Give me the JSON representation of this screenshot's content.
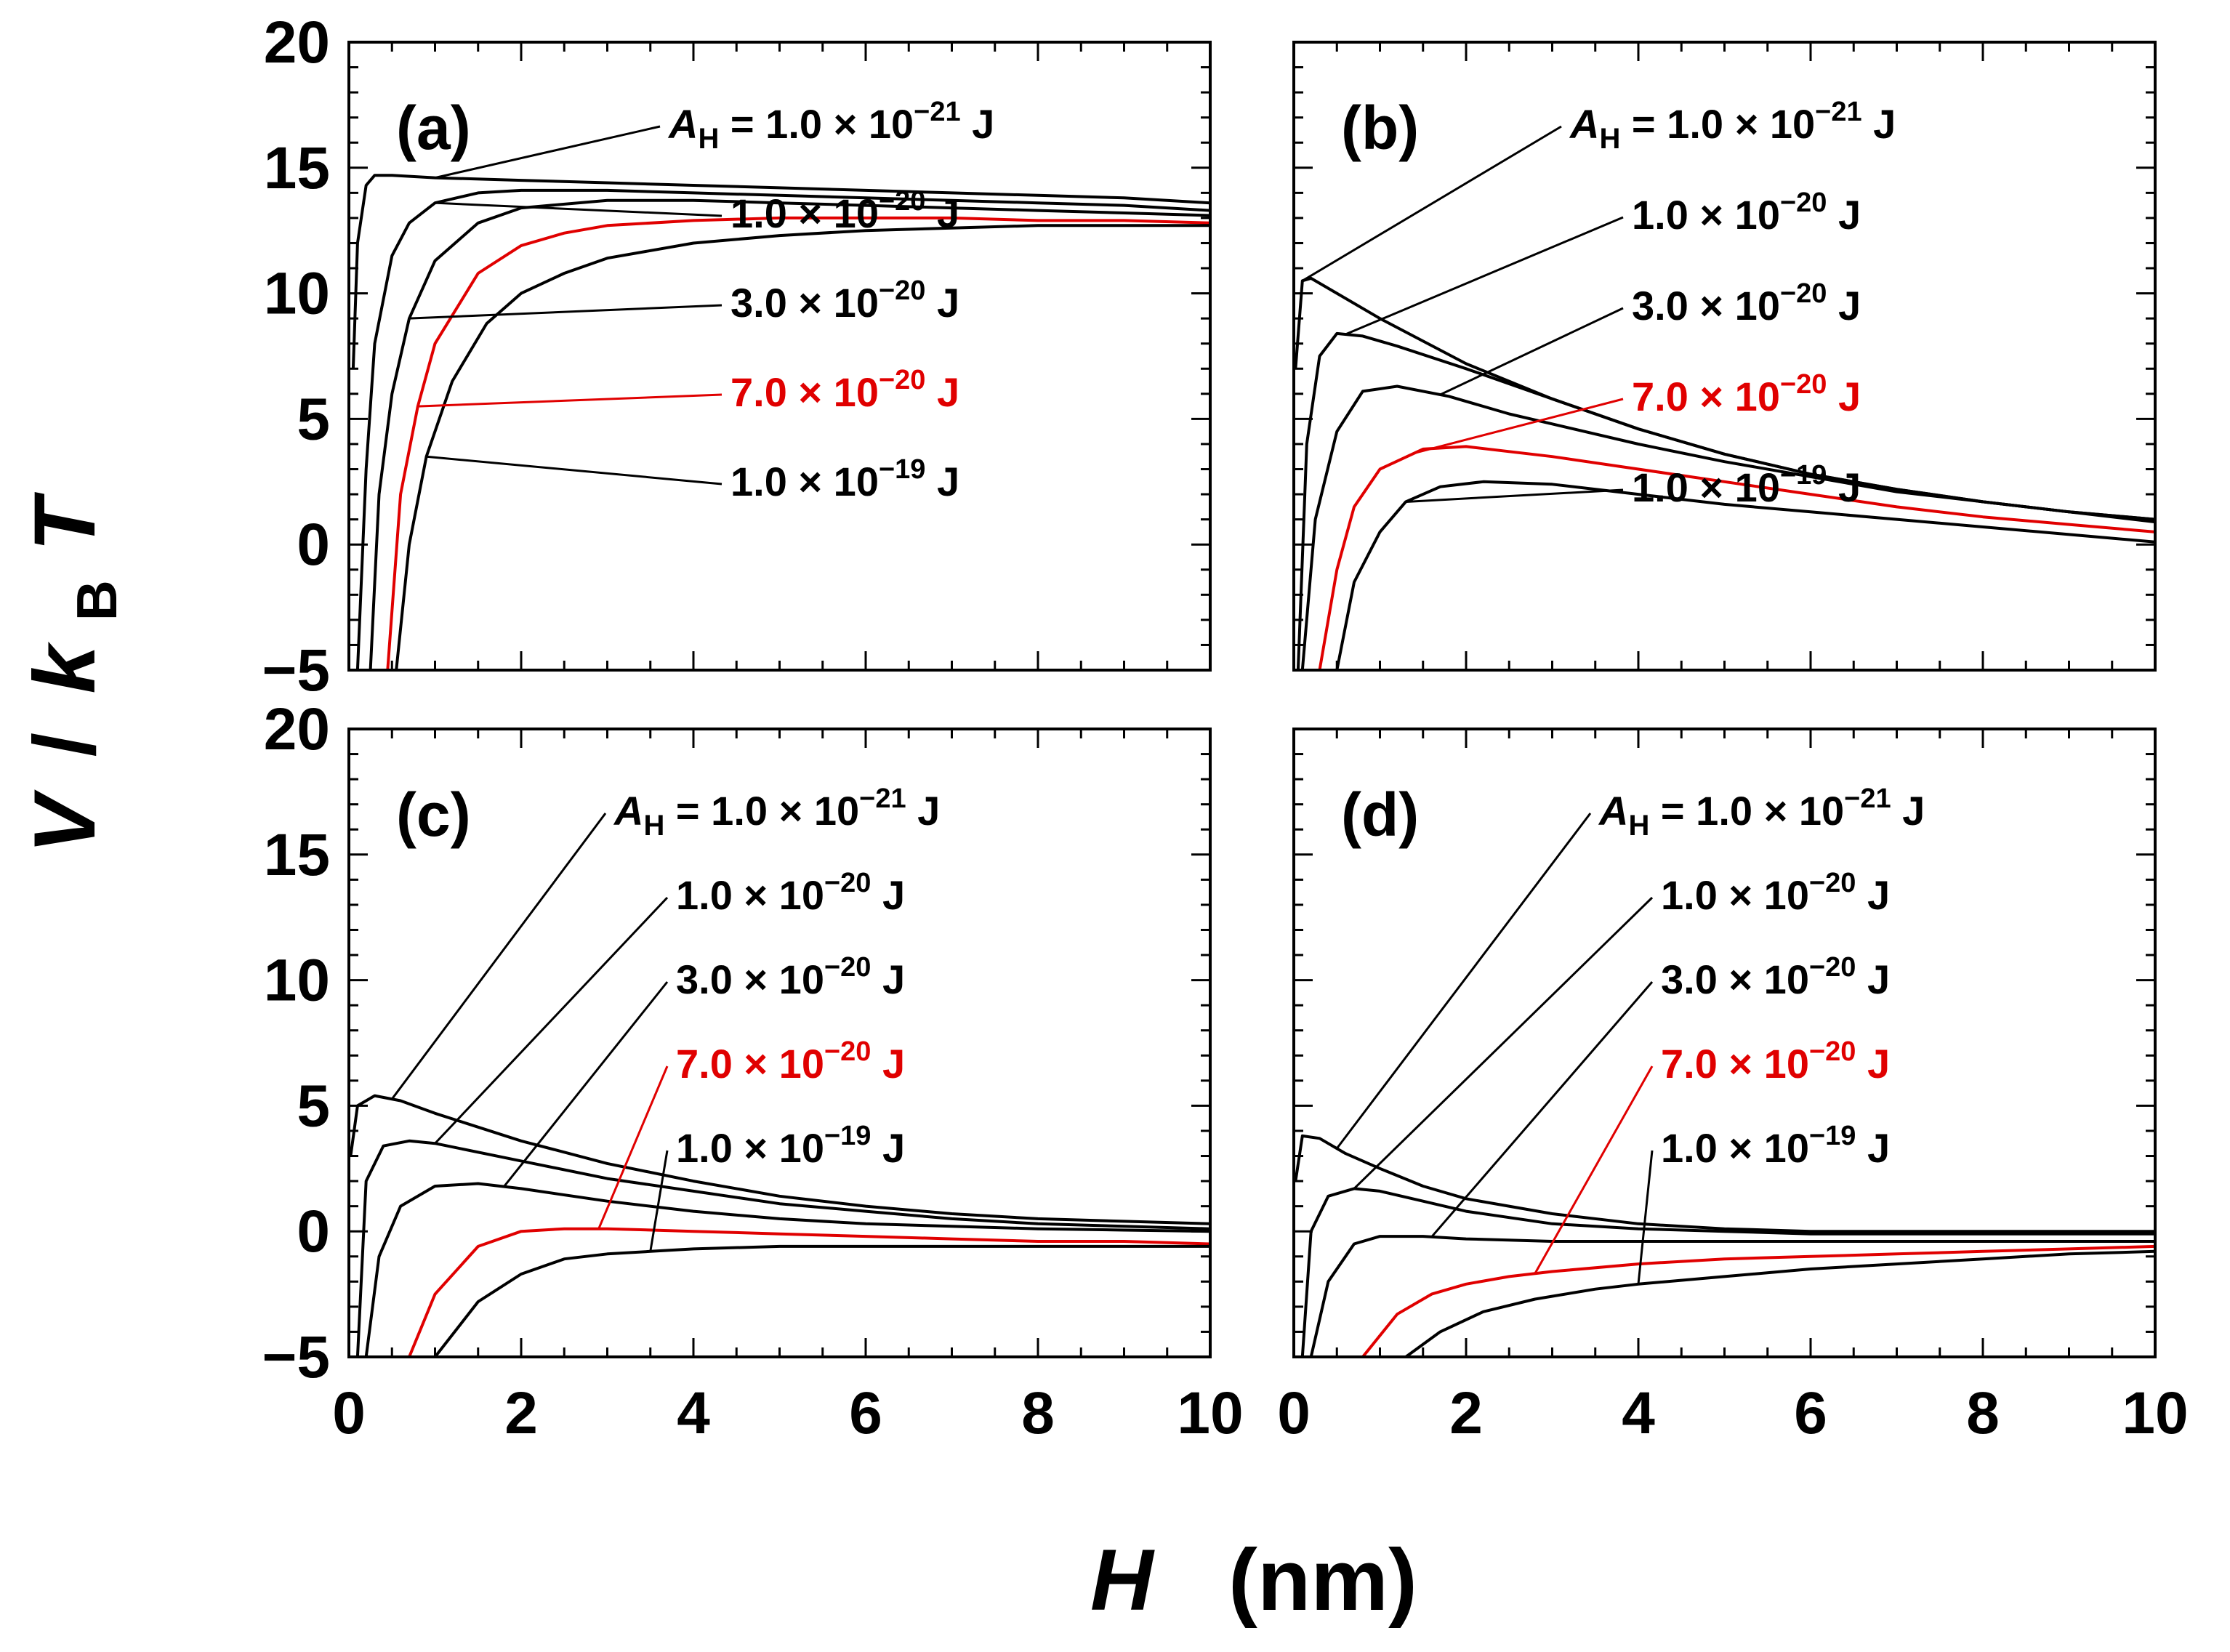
{
  "chart_data": [
    {
      "panel": "(a)",
      "type": "line",
      "xlim": [
        0,
        10
      ],
      "ylim": [
        -5,
        20
      ],
      "xticks": [
        "0",
        "2",
        "4",
        "6",
        "8",
        "10"
      ],
      "yticks": [
        "−5",
        "0",
        "5",
        "10",
        "15",
        "20"
      ],
      "series": [
        {
          "name": "A_H = 1.0 × 10^−21 J",
          "color": "#000000",
          "x": [
            0.05,
            0.1,
            0.2,
            0.3,
            0.5,
            1,
            2,
            3,
            4,
            5,
            6,
            7,
            8,
            9,
            10
          ],
          "values": [
            7,
            12,
            14.3,
            14.7,
            14.7,
            14.6,
            14.5,
            14.4,
            14.3,
            14.2,
            14.1,
            14.0,
            13.9,
            13.8,
            13.6
          ]
        },
        {
          "name": "1.0 × 10^−20 J",
          "color": "#000000",
          "x": [
            0.1,
            0.2,
            0.3,
            0.5,
            0.7,
            1,
            1.5,
            2,
            3,
            4,
            5,
            6,
            7,
            8,
            9,
            10
          ],
          "values": [
            -5,
            3,
            8,
            11.5,
            12.8,
            13.6,
            14.0,
            14.1,
            14.1,
            14.0,
            13.9,
            13.8,
            13.7,
            13.6,
            13.5,
            13.3
          ]
        },
        {
          "name": "3.0 × 10^−20 J",
          "color": "#000000",
          "x": [
            0.25,
            0.35,
            0.5,
            0.7,
            1,
            1.5,
            2,
            3,
            4,
            5,
            6,
            7,
            8,
            9,
            10
          ],
          "values": [
            -5,
            2,
            6,
            9,
            11.3,
            12.8,
            13.4,
            13.7,
            13.7,
            13.6,
            13.5,
            13.4,
            13.3,
            13.2,
            13.1
          ]
        },
        {
          "name": "7.0 × 10^−20 J",
          "color": "#e00000",
          "x": [
            0.45,
            0.6,
            0.8,
            1,
            1.5,
            2,
            2.5,
            3,
            4,
            5,
            6,
            7,
            8,
            9,
            10
          ],
          "values": [
            -5,
            2,
            5.5,
            8,
            10.8,
            11.9,
            12.4,
            12.7,
            12.9,
            13.0,
            13.0,
            13.0,
            12.9,
            12.9,
            12.8
          ]
        },
        {
          "name": "1.0 × 10^−19 J",
          "color": "#000000",
          "x": [
            0.55,
            0.7,
            0.9,
            1.2,
            1.6,
            2,
            2.5,
            3,
            4,
            5,
            6,
            7,
            8,
            9,
            10
          ],
          "values": [
            -5,
            0,
            3.5,
            6.5,
            8.8,
            10,
            10.8,
            11.4,
            12,
            12.3,
            12.5,
            12.6,
            12.7,
            12.7,
            12.7
          ]
        }
      ]
    },
    {
      "panel": "(b)",
      "type": "line",
      "xlim": [
        0,
        10
      ],
      "ylim": [
        -5,
        20
      ],
      "xticks": [
        "0",
        "2",
        "4",
        "6",
        "8",
        "10"
      ],
      "yticks": [
        "−5",
        "0",
        "5",
        "10",
        "15",
        "20"
      ],
      "series": [
        {
          "name": "A_H = 1.0 × 10^−21 J",
          "color": "#000000",
          "x": [
            0.02,
            0.1,
            0.2,
            0.5,
            1,
            2,
            3,
            4,
            5,
            6,
            7,
            8,
            9,
            10
          ],
          "values": [
            7,
            10.5,
            10.6,
            10,
            9,
            7.2,
            5.8,
            4.6,
            3.6,
            2.8,
            2.2,
            1.7,
            1.3,
            1.0
          ]
        },
        {
          "name": "1.0 × 10^−20 J",
          "color": "#000000",
          "x": [
            0.05,
            0.15,
            0.3,
            0.5,
            0.8,
            1.2,
            2,
            3,
            4,
            5,
            6,
            7,
            8,
            9,
            10
          ],
          "values": [
            -5,
            4,
            7.5,
            8.4,
            8.3,
            7.9,
            7,
            5.8,
            4.6,
            3.6,
            2.8,
            2.2,
            1.7,
            1.3,
            1.0
          ]
        },
        {
          "name": "3.0 × 10^−20 J",
          "color": "#000000",
          "x": [
            0.1,
            0.25,
            0.5,
            0.8,
            1.2,
            1.8,
            2.5,
            3,
            4,
            5,
            6,
            7,
            8,
            9,
            10
          ],
          "values": [
            -5,
            1,
            4.5,
            6.1,
            6.3,
            5.9,
            5.2,
            4.8,
            4.0,
            3.3,
            2.7,
            2.1,
            1.7,
            1.3,
            0.9
          ]
        },
        {
          "name": "7.0 × 10^−20 J",
          "color": "#e00000",
          "x": [
            0.3,
            0.5,
            0.7,
            1,
            1.5,
            2,
            2.5,
            3,
            4,
            5,
            6,
            7,
            8,
            9,
            10
          ],
          "values": [
            -5,
            -1,
            1.5,
            3,
            3.8,
            3.9,
            3.7,
            3.5,
            3.0,
            2.5,
            2.0,
            1.5,
            1.1,
            0.8,
            0.5
          ]
        },
        {
          "name": "1.0 × 10^−19 J",
          "color": "#000000",
          "x": [
            0.5,
            0.7,
            1,
            1.3,
            1.7,
            2.2,
            3,
            4,
            5,
            6,
            7,
            8,
            9,
            10
          ],
          "values": [
            -5,
            -1.5,
            0.5,
            1.7,
            2.3,
            2.5,
            2.4,
            2.0,
            1.6,
            1.3,
            1.0,
            0.7,
            0.4,
            0.1
          ]
        }
      ]
    },
    {
      "panel": "(c)",
      "type": "line",
      "xlim": [
        0,
        10
      ],
      "ylim": [
        -5,
        20
      ],
      "xticks": [
        "0",
        "2",
        "4",
        "6",
        "8",
        "10"
      ],
      "yticks": [
        "−5",
        "0",
        "5",
        "10",
        "15",
        "20"
      ],
      "series": [
        {
          "name": "A_H = 1.0 × 10^−21 J",
          "color": "#000000",
          "x": [
            0.02,
            0.1,
            0.3,
            0.6,
            1,
            2,
            3,
            4,
            5,
            6,
            7,
            8,
            9,
            10
          ],
          "values": [
            3,
            5,
            5.4,
            5.2,
            4.7,
            3.6,
            2.7,
            2.0,
            1.4,
            1.0,
            0.7,
            0.5,
            0.4,
            0.3
          ]
        },
        {
          "name": "1.0 × 10^−20 J",
          "color": "#000000",
          "x": [
            0.1,
            0.2,
            0.4,
            0.7,
            1,
            2,
            3,
            4,
            5,
            6,
            7,
            8,
            9,
            10
          ],
          "values": [
            -5,
            2,
            3.4,
            3.6,
            3.5,
            2.8,
            2.1,
            1.6,
            1.1,
            0.8,
            0.5,
            0.3,
            0.2,
            0.1
          ]
        },
        {
          "name": "3.0 × 10^−20 J",
          "color": "#000000",
          "x": [
            0.2,
            0.35,
            0.6,
            1,
            1.5,
            2,
            3,
            4,
            5,
            6,
            7,
            8,
            9,
            10
          ],
          "values": [
            -5,
            -1,
            1,
            1.8,
            1.9,
            1.7,
            1.2,
            0.8,
            0.5,
            0.3,
            0.2,
            0.1,
            0.05,
            0
          ]
        },
        {
          "name": "7.0 × 10^−20 J",
          "color": "#e00000",
          "x": [
            0.7,
            1,
            1.5,
            2,
            2.5,
            3,
            4,
            5,
            6,
            7,
            8,
            9,
            10
          ],
          "values": [
            -5,
            -2.5,
            -0.6,
            0,
            0.1,
            0.1,
            0,
            -0.1,
            -0.2,
            -0.3,
            -0.4,
            -0.4,
            -0.5
          ]
        },
        {
          "name": "1.0 × 10^−19 J",
          "color": "#000000",
          "x": [
            1,
            1.5,
            2,
            2.5,
            3,
            3.5,
            4,
            5,
            6,
            7,
            8,
            9,
            10
          ],
          "values": [
            -5,
            -2.8,
            -1.7,
            -1.1,
            -0.9,
            -0.8,
            -0.7,
            -0.6,
            -0.6,
            -0.6,
            -0.6,
            -0.6,
            -0.6
          ]
        }
      ]
    },
    {
      "panel": "(d)",
      "type": "line",
      "xlim": [
        0,
        10
      ],
      "ylim": [
        -5,
        20
      ],
      "xticks": [
        "0",
        "2",
        "4",
        "6",
        "8",
        "10"
      ],
      "yticks": [
        "−5",
        "0",
        "5",
        "10",
        "15",
        "20"
      ],
      "series": [
        {
          "name": "A_H = 1.0 × 10^−21 J",
          "color": "#000000",
          "x": [
            0.02,
            0.1,
            0.3,
            0.6,
            1,
            1.5,
            2,
            3,
            4,
            5,
            6,
            8,
            10
          ],
          "values": [
            2,
            3.8,
            3.7,
            3.1,
            2.5,
            1.8,
            1.3,
            0.7,
            0.3,
            0.1,
            0,
            0,
            0
          ]
        },
        {
          "name": "1.0 × 10^−20 J",
          "color": "#000000",
          "x": [
            0.1,
            0.2,
            0.4,
            0.7,
            1,
            1.5,
            2,
            3,
            4,
            5,
            6,
            8,
            10
          ],
          "values": [
            -5,
            0,
            1.4,
            1.7,
            1.6,
            1.2,
            0.8,
            0.3,
            0.1,
            0,
            -0.1,
            -0.1,
            -0.1
          ]
        },
        {
          "name": "3.0 × 10^−20 J",
          "color": "#000000",
          "x": [
            0.2,
            0.4,
            0.7,
            1,
            1.5,
            2,
            3,
            4,
            5,
            6,
            8,
            10
          ],
          "values": [
            -5,
            -2,
            -0.5,
            -0.2,
            -0.2,
            -0.3,
            -0.4,
            -0.4,
            -0.4,
            -0.4,
            -0.4,
            -0.4
          ]
        },
        {
          "name": "7.0 × 10^−20 J",
          "color": "#e00000",
          "x": [
            0.8,
            1.2,
            1.6,
            2,
            2.5,
            3,
            4,
            5,
            6,
            7,
            8,
            9,
            10
          ],
          "values": [
            -5,
            -3.3,
            -2.5,
            -2.1,
            -1.8,
            -1.6,
            -1.3,
            -1.1,
            -1.0,
            -0.9,
            -0.8,
            -0.7,
            -0.6
          ]
        },
        {
          "name": "1.0 × 10^−19 J",
          "color": "#000000",
          "x": [
            1.3,
            1.7,
            2.2,
            2.8,
            3.5,
            4,
            5,
            6,
            7,
            8,
            9,
            10
          ],
          "values": [
            -5,
            -4,
            -3.2,
            -2.7,
            -2.3,
            -2.1,
            -1.8,
            -1.5,
            -1.3,
            -1.1,
            -0.9,
            -0.8
          ]
        }
      ]
    }
  ],
  "axes": {
    "xlabel_symbol": "H",
    "xlabel_unit": "(nm)",
    "ylabel_symbol": "V",
    "ylabel_sep": "/",
    "ylabel_k": "k",
    "ylabel_k_sub": "B",
    "ylabel_T": "T"
  },
  "legend": {
    "ah_prefix": "A",
    "ah_sub": "H",
    "ah_eq": " = ",
    "entries": [
      {
        "mantissa": "1.0 × 10",
        "exponent": "−21",
        "unit": " J",
        "color": "#000000"
      },
      {
        "mantissa": "1.0 × 10",
        "exponent": "−20",
        "unit": " J",
        "color": "#000000"
      },
      {
        "mantissa": "3.0 × 10",
        "exponent": "−20",
        "unit": " J",
        "color": "#000000"
      },
      {
        "mantissa": "7.0 × 10",
        "exponent": "−20",
        "unit": " J",
        "color": "#e00000"
      },
      {
        "mantissa": "1.0 × 10",
        "exponent": "−19",
        "unit": " J",
        "color": "#000000"
      }
    ]
  },
  "callouts": [
    {
      "panel": 0,
      "targets_x": [
        1.0,
        1.0,
        0.7,
        0.8,
        0.9
      ]
    },
    {
      "panel": 1,
      "targets_x": [
        0.1,
        0.6,
        1.7,
        1.4,
        1.3
      ]
    },
    {
      "panel": 2,
      "targets_x": [
        0.5,
        1.0,
        1.8,
        2.9,
        3.5
      ]
    },
    {
      "panel": 3,
      "targets_x": [
        0.5,
        0.7,
        1.6,
        2.8,
        4.0
      ]
    }
  ]
}
